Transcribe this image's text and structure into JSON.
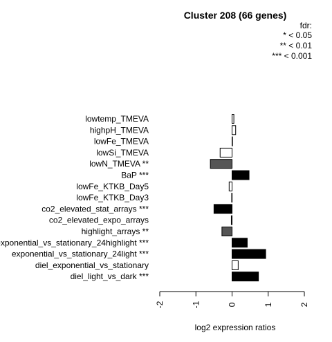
{
  "chart_data": {
    "type": "bar",
    "orientation": "horizontal",
    "title": "Cluster 208 (66 genes)",
    "xlabel": "log2 expression ratios",
    "xlim": [
      -2,
      2
    ],
    "xticks": [
      "-2",
      "-1",
      "0",
      "1",
      "2"
    ],
    "legend": {
      "title": "fdr:",
      "entries": [
        "* < 0.05",
        "** < 0.01",
        "*** < 0.001"
      ],
      "position": "top-right"
    },
    "categories": [
      "lowtemp_TMEVA",
      "highpH_TMEVA",
      "lowFe_TMEVA",
      "lowSi_TMEVA",
      "lowN_TMEVA **",
      "BaP ***",
      "lowFe_KTKB_Day5",
      "lowFe_KTKB_Day3",
      "co2_elevated_stat_arrays ***",
      "co2_elevated_expo_arrays",
      "highlight_arrays **",
      "exponential_vs_stationary_24highlight ***",
      "exponential_vs_stationary_24light ***",
      "diel_exponential_vs_stationary",
      "diel_light_vs_dark ***"
    ],
    "values": [
      0.05,
      0.1,
      0.0,
      -0.33,
      -0.6,
      0.47,
      -0.08,
      -0.01,
      -0.5,
      -0.02,
      -0.28,
      0.42,
      0.93,
      0.17,
      0.73
    ],
    "bar_colors": [
      "#ffffff",
      "#ffffff",
      "#ffffff",
      "#ffffff",
      "#555555",
      "#000000",
      "#ffffff",
      "#ffffff",
      "#000000",
      "#ffffff",
      "#555555",
      "#000000",
      "#000000",
      "#ffffff",
      "#000000"
    ],
    "grid": false
  }
}
